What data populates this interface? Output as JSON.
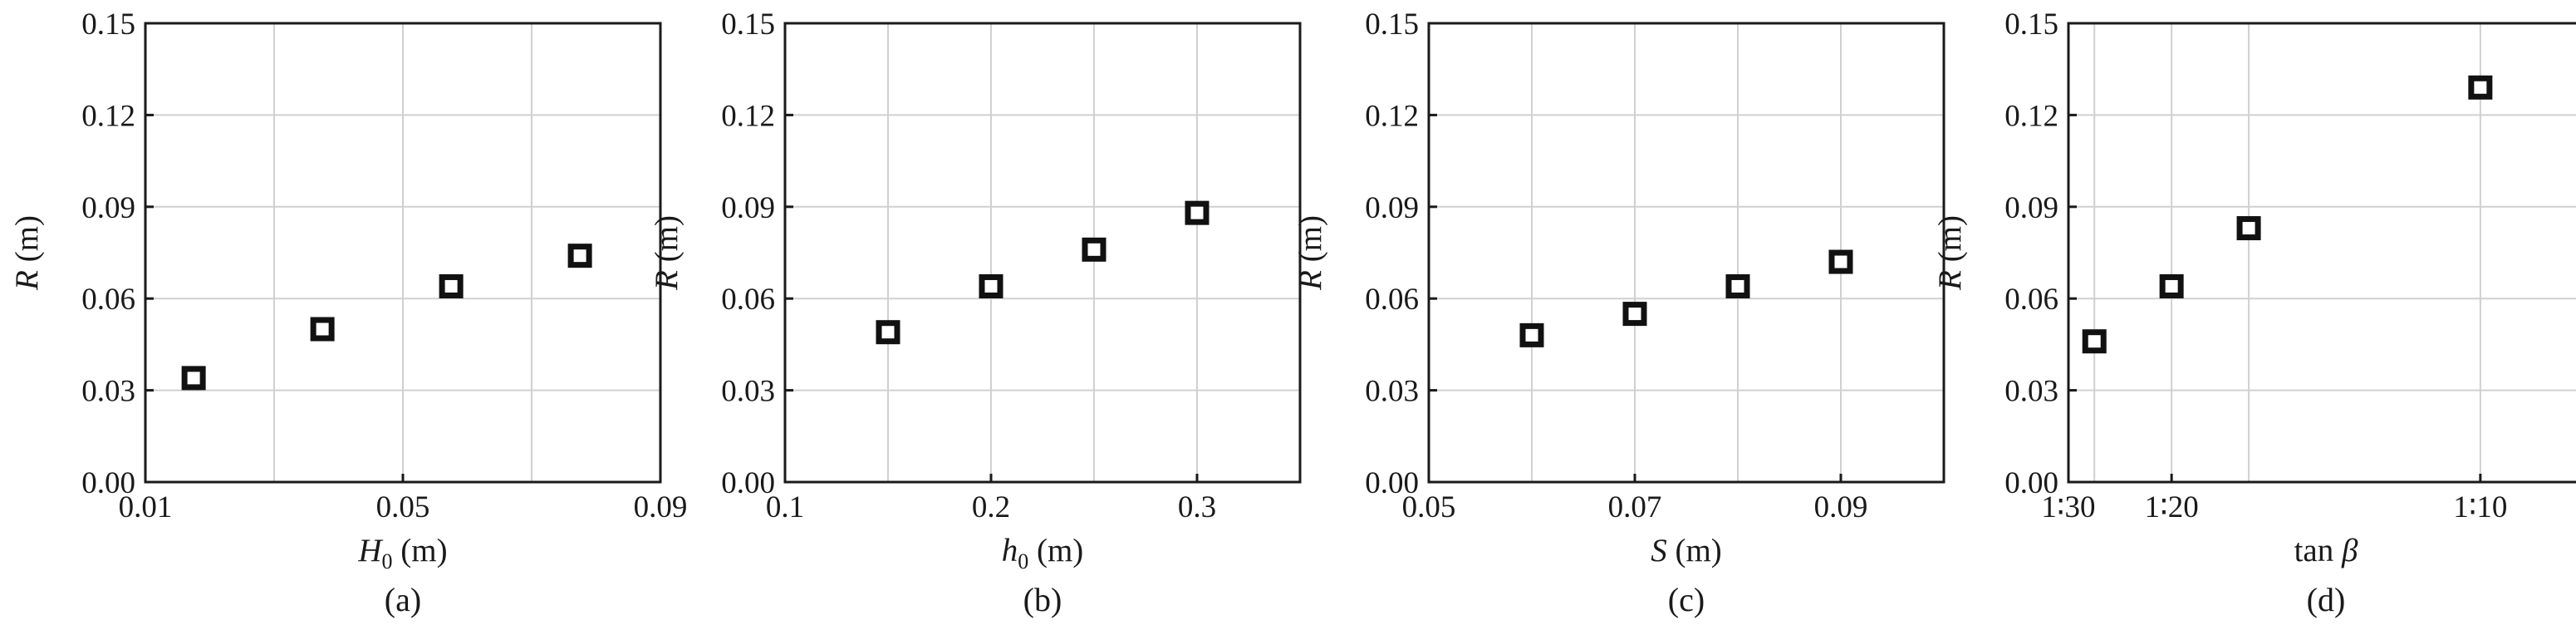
{
  "chart_data": [
    {
      "type": "scatter",
      "caption": "(a)",
      "xlabel": {
        "symbol": "H",
        "sub": "0",
        "unit": "(m)"
      },
      "ylabel": {
        "symbol": "R",
        "unit": "(m)"
      },
      "xlim": [
        0.01,
        0.09
      ],
      "ylim": [
        0,
        0.15
      ],
      "xticks": [
        0.01,
        0.05,
        0.09
      ],
      "xtick_labels": [
        "0.01",
        "0.05",
        "0.09"
      ],
      "x_grid": [
        0.01,
        0.03,
        0.05,
        0.07,
        0.09
      ],
      "yticks": [
        0,
        0.03,
        0.06,
        0.09,
        0.12,
        0.15
      ],
      "ytick_labels": [
        "0.00",
        "0.03",
        "0.06",
        "0.09",
        "0.12",
        "0.15"
      ],
      "grid": true,
      "x": [
        0.0175,
        0.0375,
        0.0575,
        0.0775
      ],
      "y": [
        0.034,
        0.05,
        0.064,
        0.074
      ]
    },
    {
      "type": "scatter",
      "caption": "(b)",
      "xlabel": {
        "symbol": "h",
        "sub": "0",
        "unit": "(m)"
      },
      "ylabel": {
        "symbol": "R",
        "unit": "(m)"
      },
      "xlim": [
        0.1,
        0.35
      ],
      "ylim": [
        0,
        0.15
      ],
      "xticks": [
        0.1,
        0.2,
        0.3
      ],
      "xtick_labels": [
        "0.1",
        "0.2",
        "0.3"
      ],
      "x_grid": [
        0.15,
        0.2,
        0.25,
        0.3
      ],
      "yticks": [
        0,
        0.03,
        0.06,
        0.09,
        0.12,
        0.15
      ],
      "ytick_labels": [
        "0.00",
        "0.03",
        "0.06",
        "0.09",
        "0.12",
        "0.15"
      ],
      "grid": true,
      "x": [
        0.15,
        0.2,
        0.25,
        0.3
      ],
      "y": [
        0.049,
        0.064,
        0.076,
        0.088
      ]
    },
    {
      "type": "scatter",
      "caption": "(c)",
      "xlabel": {
        "symbol": "S",
        "sub": "",
        "unit": "(m)"
      },
      "ylabel": {
        "symbol": "R",
        "unit": "(m)"
      },
      "xlim": [
        0.05,
        0.1
      ],
      "ylim": [
        0,
        0.15
      ],
      "xticks": [
        0.05,
        0.07,
        0.09
      ],
      "xtick_labels": [
        "0.05",
        "0.07",
        "0.09"
      ],
      "x_grid": [
        0.06,
        0.07,
        0.08,
        0.09
      ],
      "yticks": [
        0,
        0.03,
        0.06,
        0.09,
        0.12,
        0.15
      ],
      "ytick_labels": [
        "0.00",
        "0.03",
        "0.06",
        "0.09",
        "0.12",
        "0.15"
      ],
      "grid": true,
      "x": [
        0.06,
        0.07,
        0.08,
        0.09
      ],
      "y": [
        0.048,
        0.055,
        0.064,
        0.072
      ]
    },
    {
      "type": "scatter",
      "caption": "(d)",
      "xlabel": {
        "symbol": "tan",
        "sub": "",
        "unit": "β"
      },
      "ylabel": {
        "symbol": "R",
        "unit": "(m)"
      },
      "xlim": [
        0.0333,
        0.1167
      ],
      "ylim": [
        0,
        0.15
      ],
      "xticks": [
        0.0333,
        0.05,
        0.1
      ],
      "xtick_labels": [
        "1∶30",
        "1∶20",
        "1∶10"
      ],
      "x_grid": [
        0.0375,
        0.05,
        0.0625,
        0.1
      ],
      "yticks": [
        0,
        0.03,
        0.06,
        0.09,
        0.12,
        0.15
      ],
      "ytick_labels": [
        "0.00",
        "0.03",
        "0.06",
        "0.09",
        "0.12",
        "0.15"
      ],
      "grid": true,
      "x": [
        0.0375,
        0.05,
        0.0625,
        0.1
      ],
      "y": [
        0.046,
        0.064,
        0.083,
        0.129
      ]
    }
  ]
}
